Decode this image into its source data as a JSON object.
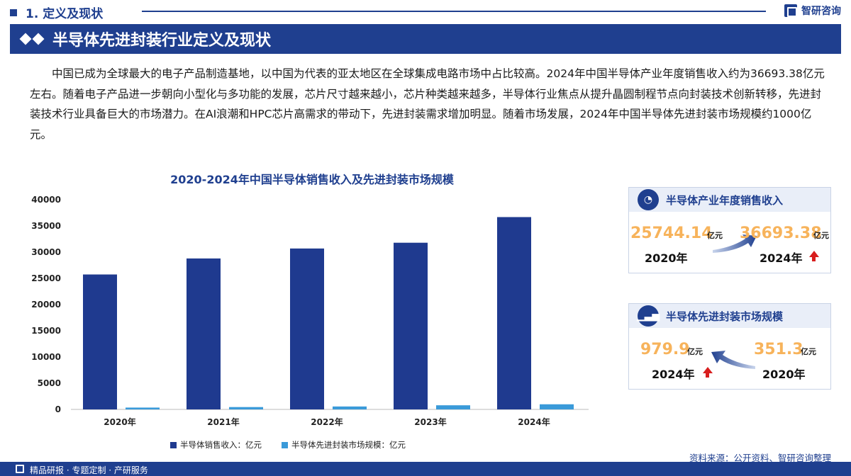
{
  "header": {
    "section_label": "1. 定义及现状",
    "brand": "智研咨询"
  },
  "title": "半导体先进封装行业定义及现状",
  "intro": "中国已成为全球最大的电子产品制造基地，以中国为代表的亚太地区在全球集成电路市场中占比较高。2024年中国半导体产业年度销售收入约为36693.38亿元左右。随着电子产品进一步朝向小型化与多功能的发展，芯片尺寸越来越小，芯片种类越来越多，半导体行业焦点从提升晶圆制程节点向封装技术创新转移，先进封装技术行业具备巨大的市场潜力。在AI浪潮和HPC芯片高需求的带动下，先进封装需求增加明显。随着市场发展，2024年中国半导体先进封装市场规模约1000亿元。",
  "chart_data": {
    "type": "bar",
    "title": "2020-2024年中国半导体销售收入及先进封装市场规模",
    "categories": [
      "2020年",
      "2021年",
      "2022年",
      "2023年",
      "2024年"
    ],
    "series": [
      {
        "name": "半导体销售收入：亿元",
        "color": "#1f3a8f",
        "values": [
          25744.14,
          28800,
          30700,
          31800,
          36693.38
        ]
      },
      {
        "name": "半导体先进封装市场规模：亿元",
        "color": "#3a9ad9",
        "values": [
          351.3,
          450,
          560,
          790,
          979.9
        ]
      }
    ],
    "yticks": [
      "0",
      "5000",
      "10000",
      "15000",
      "20000",
      "25000",
      "30000",
      "35000",
      "40000"
    ],
    "ylim": [
      0,
      40000
    ],
    "xlabel": "",
    "ylabel": "",
    "grid": false,
    "legend_position": "bottom"
  },
  "cards": {
    "sales": {
      "title": "半导体产业年度销售收入",
      "from_value": "25744.14",
      "from_unit": "亿元",
      "from_year": "2020年",
      "to_value": "36693.38",
      "to_unit": "亿元",
      "to_year": "2024年"
    },
    "packaging": {
      "title": "半导体先进封装市场规模",
      "new_value": "979.9",
      "new_unit": "亿元",
      "new_year": "2024年",
      "old_value": "351.3",
      "old_unit": "亿元",
      "old_year": "2020年"
    }
  },
  "source": "资料来源：公开资料、智研咨询整理",
  "footer": "精品研报 · 专题定制 · 产研服务",
  "colors": {
    "brand_blue": "#1f3f8f",
    "accent_orange": "#f7b35b",
    "up_red": "#d81e1e"
  }
}
